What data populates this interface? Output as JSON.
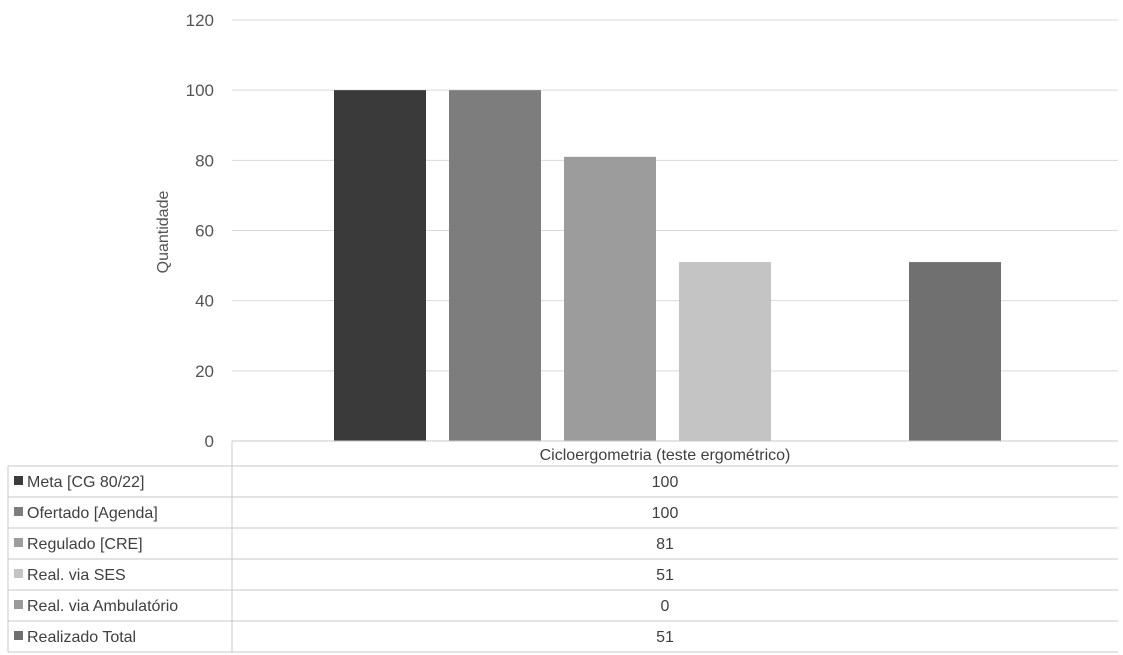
{
  "chart_data": {
    "type": "bar",
    "title": "",
    "xlabel": "",
    "ylabel": "Quantidade",
    "ylim": [
      0,
      120
    ],
    "yticks": [
      0,
      20,
      40,
      60,
      80,
      100,
      120
    ],
    "grid": true,
    "legend": "data-table",
    "categories": [
      "Cicloergometria (teste ergométrico)"
    ],
    "series": [
      {
        "name": "Meta [CG 80/22]",
        "values": [
          100
        ],
        "color": "#3a3a3a"
      },
      {
        "name": "Ofertado [Agenda]",
        "values": [
          100
        ],
        "color": "#7d7d7d"
      },
      {
        "name": "Regulado [CRE]",
        "values": [
          81
        ],
        "color": "#9c9c9c"
      },
      {
        "name": "Real. via SES",
        "values": [
          51
        ],
        "color": "#c4c4c4"
      },
      {
        "name": "Real. via Ambulatório",
        "values": [
          0
        ],
        "color": "#9a9a9a"
      },
      {
        "name": "Realizado Total",
        "values": [
          51
        ],
        "color": "#707070"
      }
    ]
  }
}
